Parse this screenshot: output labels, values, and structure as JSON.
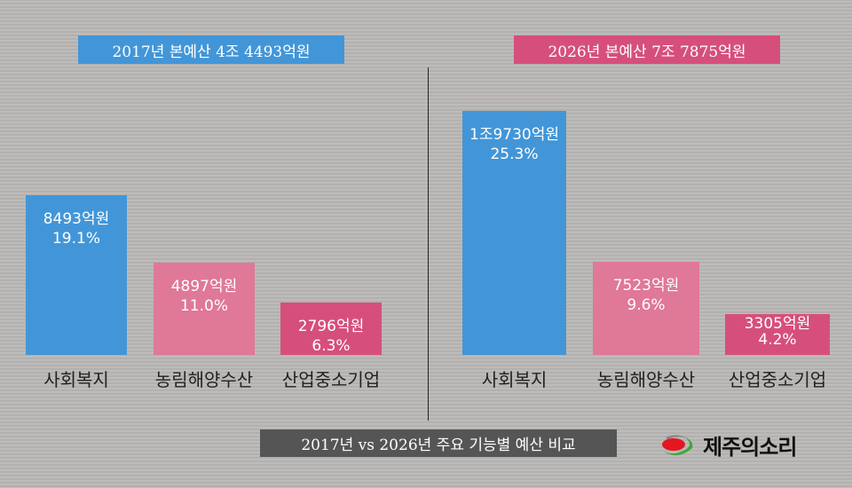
{
  "chart_data": [
    {
      "type": "bar",
      "title": "2017년 본예산 4조 4493억원",
      "categories": [
        "사회복지",
        "농림해양수산",
        "산업중소기업"
      ],
      "values": [
        8493,
        4897,
        2796
      ],
      "value_labels": [
        "8493억원",
        "4897억원",
        "2796억원"
      ],
      "percent_labels": [
        "19.1%",
        "11.0%",
        "6.3%"
      ],
      "colors": [
        "#4296d8",
        "#e07898",
        "#d64f7c"
      ],
      "title_color": "#4296d8"
    },
    {
      "type": "bar",
      "title": "2026년 본예산 7조 7875억원",
      "categories": [
        "사회복지",
        "농림해양수산",
        "산업중소기업"
      ],
      "values": [
        19730,
        7523,
        3305
      ],
      "value_labels": [
        "1조9730억원",
        "7523억원",
        "3305억원"
      ],
      "percent_labels": [
        "25.3%",
        "9.6%",
        "4.2%"
      ],
      "colors": [
        "#4296d8",
        "#e07898",
        "#d64f7c"
      ],
      "title_color": "#d64f7c"
    }
  ],
  "caption": "2017년 vs 2026년 주요 기능별 예산 비교",
  "logo": {
    "text": "제주의소리",
    "icon": "red-ellipse-green-swoosh-icon"
  }
}
